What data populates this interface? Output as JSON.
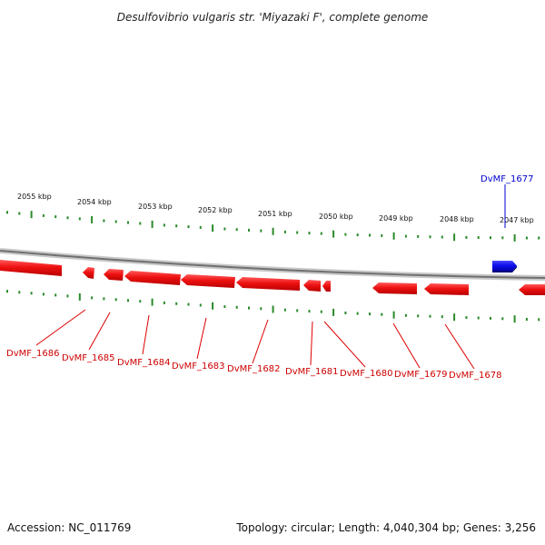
{
  "title": "Desulfovibrio vulgaris str. 'Miyazaki F', complete genome",
  "footer": {
    "accession": "Accession: NC_011769",
    "summary": "Topology: circular; Length: 4,040,304 bp; Genes: 3,256"
  },
  "colors": {
    "backbone": "#8a8a8a",
    "forward_gene": "#1010ee",
    "reverse_gene": "#ee1111",
    "tick": "#2a8a2a",
    "reverse_label": "#cc0000",
    "forward_label": "#0000cc"
  },
  "scale_labels": [
    "2055 kbp",
    "2054 kbp",
    "2053 kbp",
    "2052 kbp",
    "2051 kbp",
    "2050 kbp",
    "2049 kbp",
    "2048 kbp",
    "2047 kbp"
  ],
  "gene_labels": {
    "forward": [
      "DvMF_1677"
    ],
    "reverse": [
      "DvMF_1686",
      "DvMF_1685",
      "DvMF_1684",
      "DvMF_1683",
      "DvMF_1682",
      "DvMF_1681",
      "DvMF_1680",
      "DvMF_1679",
      "DvMF_1678"
    ]
  }
}
